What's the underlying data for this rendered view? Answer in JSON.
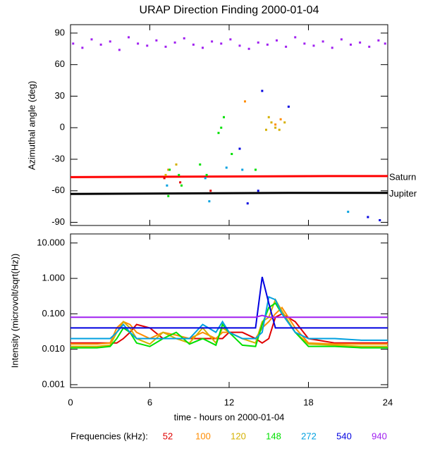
{
  "chart_data": [
    {
      "type": "scatter",
      "title": "URAP Direction Finding  2000-01-04",
      "y_label": "Azimuthal angle (deg)",
      "xlim": [
        0,
        24
      ],
      "xticks": [
        0,
        6,
        12,
        18,
        24
      ],
      "ylim": [
        -93,
        98
      ],
      "yticks": [
        90,
        60,
        30,
        0,
        -30,
        -60,
        -90
      ],
      "series": [
        {
          "color": "#a020f0",
          "x": [
            0.2,
            0.9,
            1.6,
            2.3,
            3.0,
            3.7,
            4.4,
            5.1,
            5.8,
            6.5,
            7.2,
            7.9,
            8.6,
            9.3,
            10.0,
            10.7,
            11.4,
            12.1,
            12.8,
            13.5,
            14.2,
            14.9,
            15.6,
            16.3,
            17.0,
            17.7,
            18.4,
            19.1,
            19.8,
            20.5,
            21.2,
            21.9,
            22.6,
            23.3,
            23.8
          ],
          "values": [
            80,
            76,
            84,
            79,
            82,
            74,
            86,
            80,
            78,
            83,
            77,
            81,
            85,
            79,
            76,
            82,
            80,
            84,
            78,
            75,
            81,
            79,
            83,
            77,
            86,
            80,
            78,
            82,
            76,
            84,
            79,
            81,
            77,
            83,
            80
          ]
        },
        {
          "color": "#e00000",
          "x": [
            7.1,
            8.3,
            10.6
          ],
          "values": [
            -48,
            -52,
            -60
          ]
        },
        {
          "color": "#ff8c00",
          "x": [
            7.4,
            15.5,
            15.9,
            13.2
          ],
          "values": [
            -40,
            3,
            8,
            25
          ]
        },
        {
          "color": "#d4b000",
          "x": [
            15.2,
            15.5,
            15.8,
            15.0,
            16.2,
            14.8,
            7.2,
            8.0
          ],
          "values": [
            5,
            0,
            -2,
            10,
            5,
            -2,
            -45,
            -35
          ]
        },
        {
          "color": "#00e000",
          "x": [
            7.5,
            8.2,
            8.4,
            9.8,
            10.3,
            11.2,
            11.6,
            11.4,
            12.2,
            14.0,
            7.4
          ],
          "values": [
            -40,
            -45,
            -55,
            -35,
            -45,
            -5,
            10,
            0,
            -25,
            -40,
            -65
          ]
        },
        {
          "color": "#00a0e0",
          "x": [
            7.3,
            10.2,
            10.5,
            11.8,
            13.0,
            21.0
          ],
          "values": [
            -55,
            -48,
            -70,
            -38,
            -40,
            -80
          ]
        },
        {
          "color": "#0000e0",
          "x": [
            13.4,
            12.8,
            14.5,
            14.2,
            16.5,
            22.5,
            23.4
          ],
          "values": [
            -72,
            -20,
            35,
            -60,
            20,
            -85,
            -88
          ]
        }
      ],
      "reference_lines": [
        {
          "name": "Saturn",
          "color": "#ff0000",
          "x": [
            0,
            19.5,
            24
          ],
          "values": [
            -47,
            -46,
            -46
          ]
        },
        {
          "name": "Jupiter",
          "color": "#000000",
          "x": [
            0,
            16.5,
            24
          ],
          "values": [
            -63,
            -62,
            -62
          ]
        }
      ]
    },
    {
      "type": "line",
      "log_scale": true,
      "x_label": "time - hours on 2000-01-04",
      "y_label": "Intensity (microvolt/sqrt(Hz))",
      "legend_title": "Frequencies (kHz):",
      "xlim": [
        0,
        24
      ],
      "xticks": [
        0,
        6,
        12,
        18,
        24
      ],
      "ylim": [
        0.00083,
        18
      ],
      "yticks": [
        {
          "value": 10,
          "label": "10.000"
        },
        {
          "value": 1,
          "label": "1.000"
        },
        {
          "value": 0.1,
          "label": "0.100"
        },
        {
          "value": 0.01,
          "label": "0.010"
        },
        {
          "value": 0.001,
          "label": "0.001"
        }
      ],
      "x": [
        0,
        1,
        2,
        3,
        3.5,
        4,
        4.5,
        5,
        6,
        7,
        8,
        9,
        10,
        11,
        11.5,
        12,
        13,
        14,
        14.5,
        15,
        15.5,
        16,
        17,
        18,
        20,
        22,
        24
      ],
      "series": [
        {
          "name": "52",
          "color": "#e00000",
          "values": [
            0.015,
            0.015,
            0.015,
            0.015,
            0.015,
            0.02,
            0.03,
            0.05,
            0.04,
            0.02,
            0.02,
            0.02,
            0.02,
            0.02,
            0.02,
            0.03,
            0.03,
            0.02,
            0.015,
            0.02,
            0.08,
            0.1,
            0.06,
            0.02,
            0.015,
            0.015,
            0.015
          ]
        },
        {
          "name": "100",
          "color": "#ff8c00",
          "values": [
            0.014,
            0.014,
            0.014,
            0.015,
            0.04,
            0.06,
            0.05,
            0.03,
            0.02,
            0.03,
            0.025,
            0.02,
            0.03,
            0.02,
            0.03,
            0.03,
            0.02,
            0.02,
            0.04,
            0.06,
            0.1,
            0.15,
            0.04,
            0.015,
            0.014,
            0.014,
            0.014
          ]
        },
        {
          "name": "120",
          "color": "#d4b000",
          "values": [
            0.012,
            0.012,
            0.012,
            0.013,
            0.03,
            0.06,
            0.04,
            0.02,
            0.014,
            0.03,
            0.02,
            0.015,
            0.04,
            0.015,
            0.04,
            0.03,
            0.02,
            0.015,
            0.06,
            0.08,
            0.25,
            0.12,
            0.03,
            0.014,
            0.013,
            0.012,
            0.012
          ]
        },
        {
          "name": "148",
          "color": "#00e000",
          "values": [
            0.011,
            0.011,
            0.011,
            0.012,
            0.02,
            0.04,
            0.03,
            0.015,
            0.012,
            0.02,
            0.03,
            0.014,
            0.02,
            0.013,
            0.05,
            0.03,
            0.013,
            0.012,
            0.05,
            0.15,
            0.2,
            0.1,
            0.03,
            0.012,
            0.012,
            0.011,
            0.011
          ]
        },
        {
          "name": "272",
          "color": "#00a0e0",
          "values": [
            0.02,
            0.02,
            0.02,
            0.02,
            0.03,
            0.05,
            0.03,
            0.02,
            0.02,
            0.02,
            0.02,
            0.02,
            0.05,
            0.03,
            0.06,
            0.03,
            0.02,
            0.02,
            0.03,
            0.3,
            0.25,
            0.1,
            0.03,
            0.02,
            0.02,
            0.018,
            0.018
          ]
        },
        {
          "name": "540",
          "color": "#0000e0",
          "values": [
            0.04,
            0.04,
            0.04,
            0.04,
            0.04,
            0.04,
            0.04,
            0.04,
            0.04,
            0.04,
            0.04,
            0.04,
            0.04,
            0.04,
            0.04,
            0.04,
            0.04,
            0.04,
            1.1,
            0.2,
            0.04,
            0.04,
            0.04,
            0.04,
            0.04,
            0.04,
            0.04
          ]
        },
        {
          "name": "940",
          "color": "#a020f0",
          "values": [
            0.08,
            0.08,
            0.08,
            0.08,
            0.08,
            0.08,
            0.08,
            0.08,
            0.08,
            0.08,
            0.08,
            0.08,
            0.08,
            0.08,
            0.08,
            0.08,
            0.08,
            0.08,
            0.09,
            0.08,
            0.08,
            0.08,
            0.08,
            0.08,
            0.08,
            0.08,
            0.08
          ]
        }
      ]
    }
  ]
}
